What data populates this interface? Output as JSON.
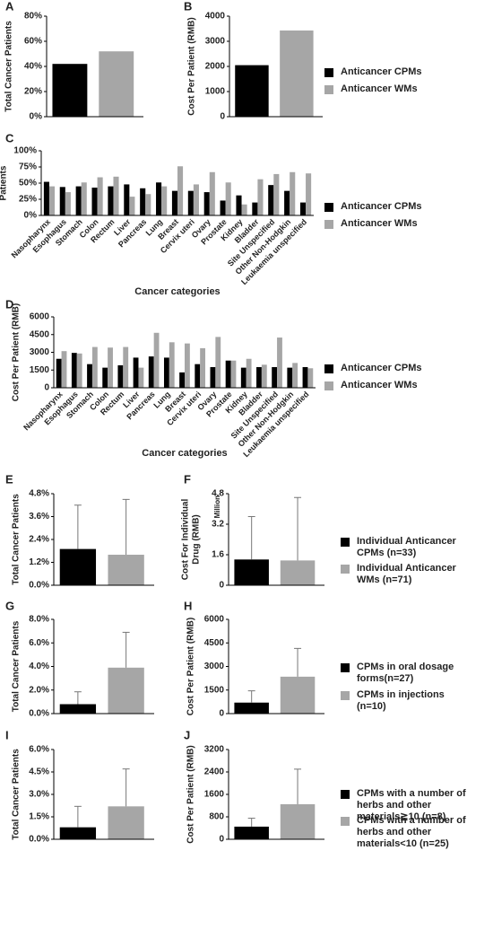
{
  "chart_data": [
    {
      "type": "bar",
      "panel_label": "A",
      "y_label": "Total Cancer Patients",
      "categories": [
        null
      ],
      "series": [
        {
          "color": "#000000",
          "values": [
            42
          ]
        },
        {
          "color": "#a6a6a6",
          "values": [
            52
          ]
        }
      ],
      "ylim": [
        0,
        80
      ],
      "yticks": [
        {
          "value": 0,
          "label": "0%"
        },
        {
          "value": 20,
          "label": "20%"
        },
        {
          "value": 40,
          "label": "40%"
        },
        {
          "value": 60,
          "label": "60%"
        },
        {
          "value": 80,
          "label": "80%"
        }
      ]
    },
    {
      "type": "bar",
      "panel_label": "B",
      "y_label": "Cost Per Patient (RMB)",
      "categories": [
        null
      ],
      "series": [
        {
          "name": "Anticancer CPMs",
          "color": "#000000",
          "values": [
            2050
          ]
        },
        {
          "name": "Anticancer  WMs",
          "color": "#a6a6a6",
          "values": [
            3430
          ]
        }
      ],
      "ylim": [
        0,
        4000
      ],
      "yticks": [
        0,
        1000,
        2000,
        3000,
        4000
      ]
    },
    {
      "type": "bar",
      "panel_label": "C",
      "y_label": "Patients",
      "x_label": "Cancer categories",
      "categories": [
        "Nasopharynx",
        "Esophagus",
        "Stomach",
        "Colon",
        "Rectum",
        "Liver",
        "Pancreas",
        "Lung",
        "Breast",
        "Cervix uteri",
        "Ovary",
        "Prostate",
        "Kidney",
        "Bladder",
        "Site Unspecified",
        "Other Non-Hodgkin",
        "Leukaemia unspecified"
      ],
      "series": [
        {
          "name": "Anticancer CPMs",
          "color": "#000000",
          "values": [
            52,
            44,
            45,
            43,
            45,
            48,
            42,
            51,
            38,
            38,
            36,
            23,
            31,
            20,
            47,
            38,
            20
          ]
        },
        {
          "name": "Anticancer WMs",
          "color": "#a6a6a6",
          "values": [
            45,
            36,
            51,
            59,
            60,
            29,
            33,
            45,
            76,
            48,
            67,
            51,
            17,
            56,
            64,
            67,
            65
          ]
        }
      ],
      "ylim": [
        0,
        100
      ],
      "yticks": [
        {
          "value": 0,
          "label": "0%"
        },
        {
          "value": 25,
          "label": "25%"
        },
        {
          "value": 50,
          "label": "50%"
        },
        {
          "value": 75,
          "label": "75%"
        },
        {
          "value": 100,
          "label": "100%"
        }
      ]
    },
    {
      "type": "bar",
      "panel_label": "D",
      "y_label": "Cost Per Patient (RMB)",
      "x_label": "Cancer categories",
      "categories": [
        "Nasopharynx",
        "Esophagus",
        "Stomach",
        "Colon",
        "Rectum",
        "Liver",
        "Pancreas",
        "Lung",
        "Breast",
        "Cervix uteri",
        "Ovary",
        "Prostate",
        "Kidney",
        "Bladder",
        "Site Unspecified",
        "Other Non-Hodgkin",
        "Leukaemia unspecified"
      ],
      "series": [
        {
          "name": "Anticancer CPMs",
          "color": "#000000",
          "values": [
            2450,
            2950,
            2000,
            1700,
            1900,
            2550,
            2650,
            2550,
            1300,
            2000,
            1750,
            2300,
            1700,
            1750,
            1750,
            1700,
            1750
          ]
        },
        {
          "name": "Anticancer  WMs",
          "color": "#a6a6a6",
          "values": [
            3100,
            2900,
            3450,
            3400,
            3450,
            1700,
            4650,
            3850,
            3750,
            3350,
            4300,
            2300,
            2450,
            1950,
            4250,
            2100,
            1650
          ]
        }
      ],
      "ylim": [
        0,
        6000
      ],
      "yticks": [
        0,
        1500,
        3000,
        4500,
        6000
      ]
    },
    {
      "type": "bar",
      "panel_label": "E",
      "y_label": "Total Cancer Patients",
      "categories": [
        null
      ],
      "series": [
        {
          "color": "#000000",
          "values": [
            1.9
          ],
          "errors": [
            2.3
          ]
        },
        {
          "color": "#a6a6a6",
          "values": [
            1.6
          ],
          "errors": [
            2.9
          ]
        }
      ],
      "ylim": [
        0,
        4.8
      ],
      "yticks": [
        {
          "value": 0,
          "label": "0.0%"
        },
        {
          "value": 1.2,
          "label": "1.2%"
        },
        {
          "value": 2.4,
          "label": "2.4%"
        },
        {
          "value": 3.6,
          "label": "3.6%"
        },
        {
          "value": 4.8,
          "label": "4.8%"
        }
      ]
    },
    {
      "type": "bar",
      "panel_label": "F",
      "y_label": [
        "Cost For Individual",
        "Drug (RMB)"
      ],
      "y_unit": "Million",
      "categories": [
        null
      ],
      "series": [
        {
          "name": "Individual Anticancer CPMs (n=33)",
          "color": "#000000",
          "values": [
            1.35
          ],
          "errors": [
            2.25
          ]
        },
        {
          "name": "Individual Anticancer WMs (n=71)",
          "color": "#a6a6a6",
          "values": [
            1.3
          ],
          "errors": [
            3.3
          ]
        }
      ],
      "ylim": [
        0,
        4.8
      ],
      "yticks": [
        0,
        1.6,
        3.2,
        4.8
      ]
    },
    {
      "type": "bar",
      "panel_label": "G",
      "y_label": "Total Cancer Patients",
      "categories": [
        null
      ],
      "series": [
        {
          "color": "#000000",
          "values": [
            0.8
          ],
          "errors": [
            1.05
          ]
        },
        {
          "color": "#a6a6a6",
          "values": [
            3.9
          ],
          "errors": [
            3.0
          ]
        }
      ],
      "ylim": [
        0,
        8
      ],
      "yticks": [
        {
          "value": 0,
          "label": "0.0%"
        },
        {
          "value": 2,
          "label": "2.0%"
        },
        {
          "value": 4,
          "label": "4.0%"
        },
        {
          "value": 6,
          "label": "6.0%"
        },
        {
          "value": 8,
          "label": "8.0%"
        }
      ]
    },
    {
      "type": "bar",
      "panel_label": "H",
      "y_label": "Cost Per Patient (RMB)",
      "categories": [
        null
      ],
      "series": [
        {
          "name": "CPMs in oral dosage forms(n=27)",
          "color": "#000000",
          "values": [
            700
          ],
          "errors": [
            750
          ]
        },
        {
          "name": "CPMs in injections (n=10)",
          "color": "#a6a6a6",
          "values": [
            2350
          ],
          "errors": [
            1800
          ]
        }
      ],
      "ylim": [
        0,
        6000
      ],
      "yticks": [
        0,
        1500,
        3000,
        4500,
        6000
      ]
    },
    {
      "type": "bar",
      "panel_label": "I",
      "y_label": "Total Cancer Patients",
      "categories": [
        null
      ],
      "series": [
        {
          "color": "#000000",
          "values": [
            0.8
          ],
          "errors": [
            1.4
          ]
        },
        {
          "color": "#a6a6a6",
          "values": [
            2.2
          ],
          "errors": [
            2.5
          ]
        }
      ],
      "ylim": [
        0,
        6
      ],
      "yticks": [
        {
          "value": 0,
          "label": "0.0%"
        },
        {
          "value": 1.5,
          "label": "1.5%"
        },
        {
          "value": 3,
          "label": "3.0%"
        },
        {
          "value": 4.5,
          "label": "4.5%"
        },
        {
          "value": 6,
          "label": "6.0%"
        }
      ]
    },
    {
      "type": "bar",
      "panel_label": "J",
      "y_label": "Cost Per Patient (RMB)",
      "categories": [
        null
      ],
      "series": [
        {
          "name": "CPMs with a number of herbs and other materials≧10 (n=8)",
          "color": "#000000",
          "values": [
            450
          ],
          "errors": [
            300
          ]
        },
        {
          "name": "CPMs with a number of herbs and other materials<10 (n=25)",
          "color": "#a6a6a6",
          "values": [
            1250
          ],
          "errors": [
            1250
          ]
        }
      ],
      "ylim": [
        0,
        3200
      ],
      "yticks": [
        0,
        800,
        1600,
        2400,
        3200
      ]
    }
  ]
}
